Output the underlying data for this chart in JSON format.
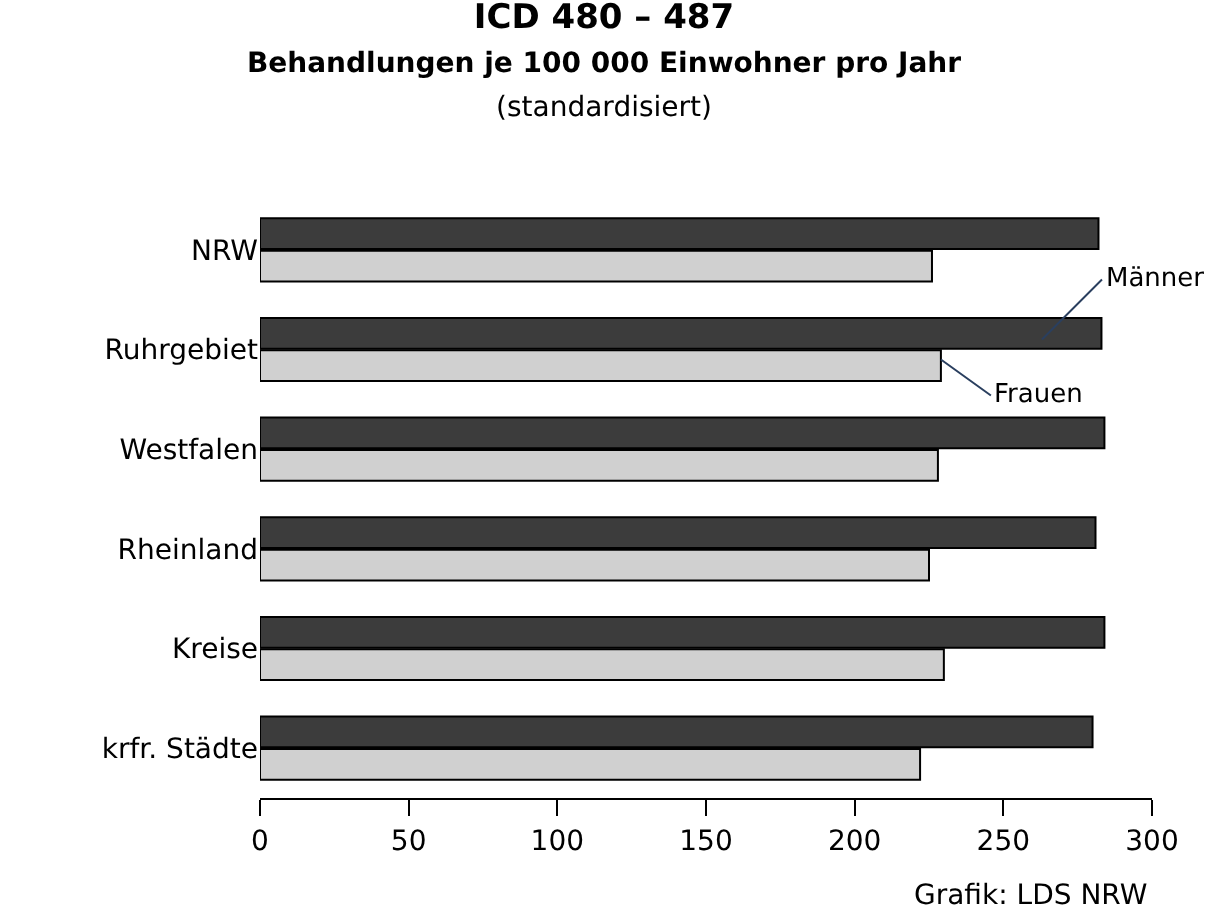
{
  "chart_data": {
    "type": "bar",
    "orientation": "horizontal",
    "title": "ICD 480 – 487",
    "subtitle": "Behandlungen je 100 000 Einwohner pro Jahr\n(standardisiert)",
    "categories": [
      "NRW",
      "Ruhrgebiet",
      "Westfalen",
      "Rheinland",
      "Kreise",
      "krfr. Städte"
    ],
    "series": [
      {
        "name": "Männer",
        "color": "#3c3c3c",
        "values": [
          282,
          283,
          284,
          281,
          284,
          280
        ]
      },
      {
        "name": "Frauen",
        "color": "#d0d0d0",
        "values": [
          226,
          229,
          228,
          225,
          230,
          222
        ]
      }
    ],
    "xlim": [
      0,
      300
    ],
    "xticks": [
      0,
      50,
      100,
      150,
      200,
      250,
      300
    ],
    "legend": false,
    "annotations": [
      "Grafik: LDS NRW"
    ]
  }
}
